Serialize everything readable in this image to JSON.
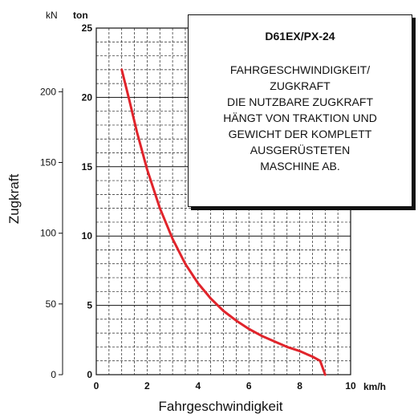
{
  "chart_data": {
    "type": "line",
    "x_label": "Fahrgeschwindigkeit",
    "y_label": "Zugkraft",
    "x_unit": "km/h",
    "y_unit_left": "kN",
    "y_unit_right": "ton",
    "x_ticks": [
      "0",
      "2",
      "4",
      "6",
      "8",
      "10"
    ],
    "y_ticks_ton": [
      "0",
      "5",
      "10",
      "15",
      "20",
      "25"
    ],
    "y_ticks_kN": [
      "0",
      "50",
      "100",
      "150",
      "200"
    ],
    "x_range": [
      0,
      10
    ],
    "y_range_ton": [
      0,
      25
    ],
    "y_range_kN": [
      0,
      245
    ],
    "grid": true,
    "series": [
      {
        "color": "#e0242b",
        "x": [
          1.0,
          1.3,
          1.6,
          2.0,
          2.5,
          3.0,
          3.5,
          4.0,
          4.5,
          5.0,
          5.5,
          6.0,
          6.5,
          7.0,
          7.5,
          8.0,
          8.5,
          8.8,
          9.0
        ],
        "y": [
          22.0,
          19.8,
          17.5,
          14.8,
          12.0,
          9.8,
          8.0,
          6.6,
          5.5,
          4.6,
          3.9,
          3.3,
          2.8,
          2.4,
          2.0,
          1.7,
          1.3,
          1.0,
          0.0
        ]
      }
    ]
  },
  "legend": {
    "title": "D61EX/PX-24",
    "body": "FAHRGESCHWINDIGKEIT/\nZUGKRAFT\nDIE NUTZBARE ZUGKRAFT\nHÄNGT VON TRAKTION UND\nGEWICHT DER KOMPLETT\nAUSGERÜSTETEN\nMASCHINE AB."
  }
}
